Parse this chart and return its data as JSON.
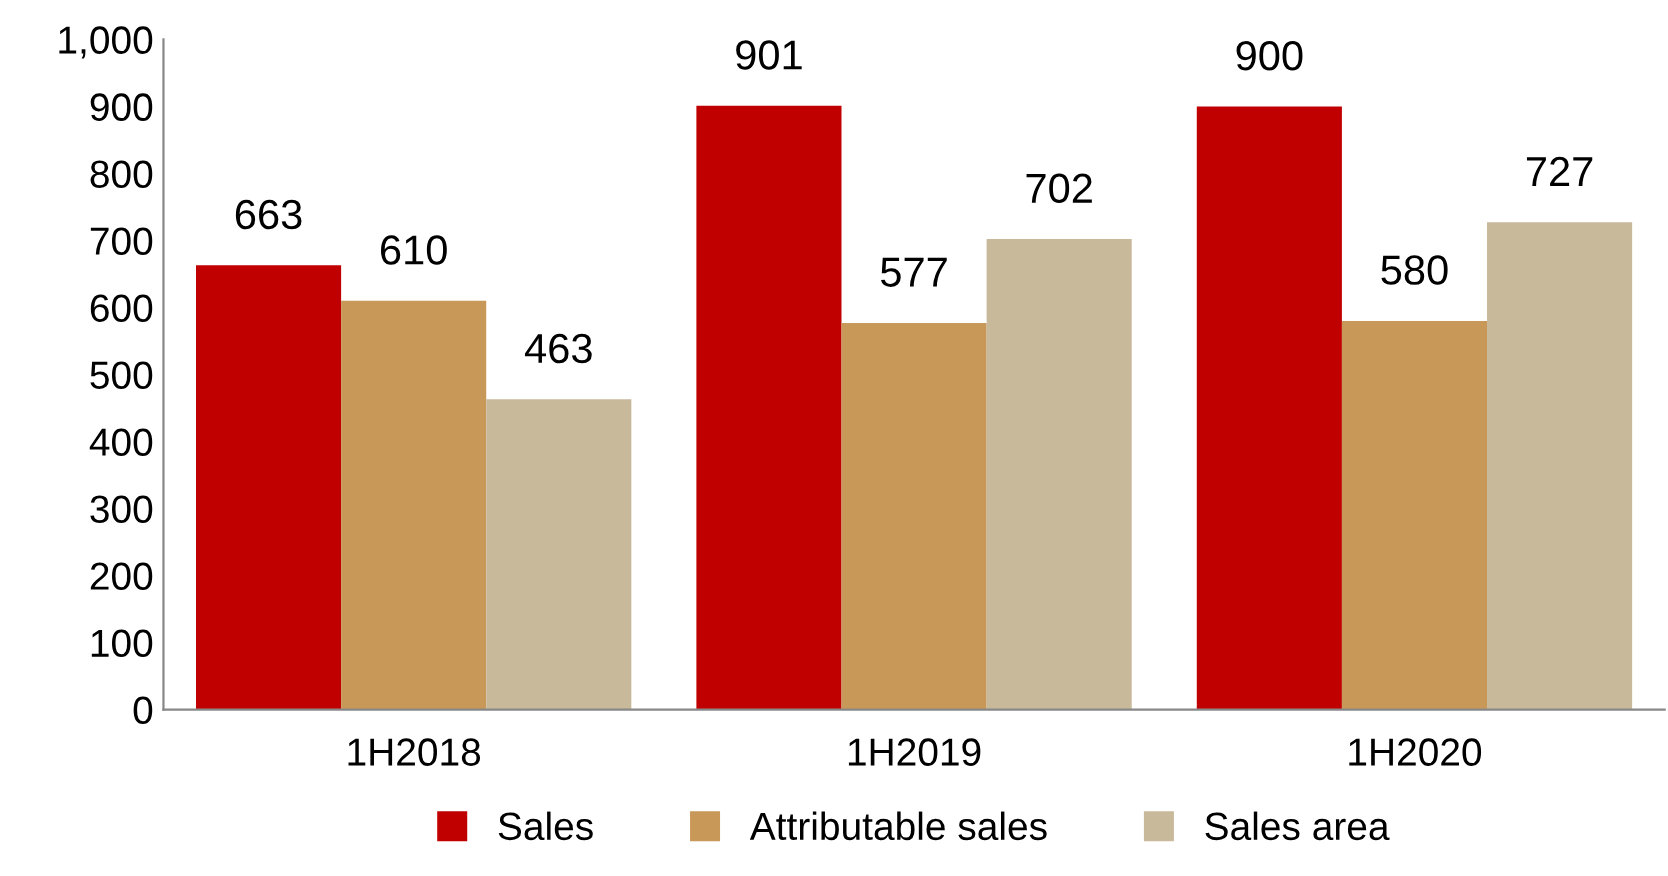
{
  "chart_data": {
    "type": "bar",
    "categories": [
      "1H2018",
      "1H2019",
      "1H2020"
    ],
    "series": [
      {
        "name": "Sales",
        "color": "#c00000",
        "values": [
          663,
          901,
          900
        ]
      },
      {
        "name": "Attributable sales",
        "color": "#c89858",
        "values": [
          610,
          577,
          580
        ]
      },
      {
        "name": "Sales area",
        "color": "#c9b99b",
        "values": [
          463,
          702,
          727
        ]
      }
    ],
    "ylim": [
      0,
      1000
    ],
    "yticks": [
      0,
      100,
      200,
      300,
      400,
      500,
      600,
      700,
      800,
      900,
      {
        "value": 1000,
        "label": "1,000"
      }
    ],
    "data_labels": true,
    "grid": false,
    "legend": "bottom"
  }
}
